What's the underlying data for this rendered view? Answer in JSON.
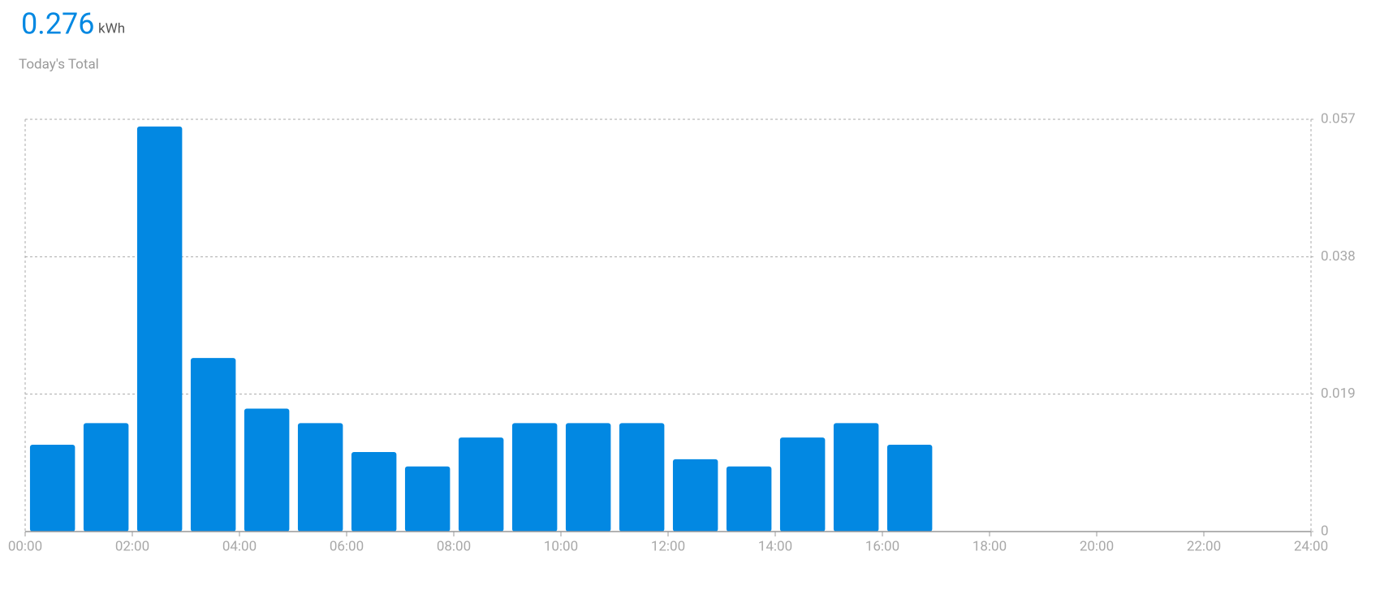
{
  "chart_data": {
    "type": "bar",
    "total": "0.276",
    "unit": "kWh",
    "subtitle": "Today's Total",
    "x": [
      0,
      1,
      2,
      3,
      4,
      5,
      6,
      7,
      8,
      9,
      10,
      11,
      12,
      13,
      14,
      15,
      16
    ],
    "values": [
      0.012,
      0.015,
      0.056,
      0.024,
      0.017,
      0.015,
      0.011,
      0.009,
      0.013,
      0.015,
      0.015,
      0.015,
      0.01,
      0.009,
      0.013,
      0.015,
      0.012
    ],
    "color": "#0288e2",
    "xlim": [
      0,
      24
    ],
    "xticks": [
      {
        "value": 0,
        "label": "00:00"
      },
      {
        "value": 2,
        "label": "02:00"
      },
      {
        "value": 4,
        "label": "04:00"
      },
      {
        "value": 6,
        "label": "06:00"
      },
      {
        "value": 8,
        "label": "08:00"
      },
      {
        "value": 10,
        "label": "10:00"
      },
      {
        "value": 12,
        "label": "12:00"
      },
      {
        "value": 14,
        "label": "14:00"
      },
      {
        "value": 16,
        "label": "16:00"
      },
      {
        "value": 18,
        "label": "18:00"
      },
      {
        "value": 20,
        "label": "20:00"
      },
      {
        "value": 22,
        "label": "22:00"
      },
      {
        "value": 24,
        "label": "24:00"
      }
    ],
    "ylim": [
      0,
      0.057
    ],
    "yticks": [
      0,
      0.019,
      0.038,
      0.057
    ],
    "grid": true
  }
}
